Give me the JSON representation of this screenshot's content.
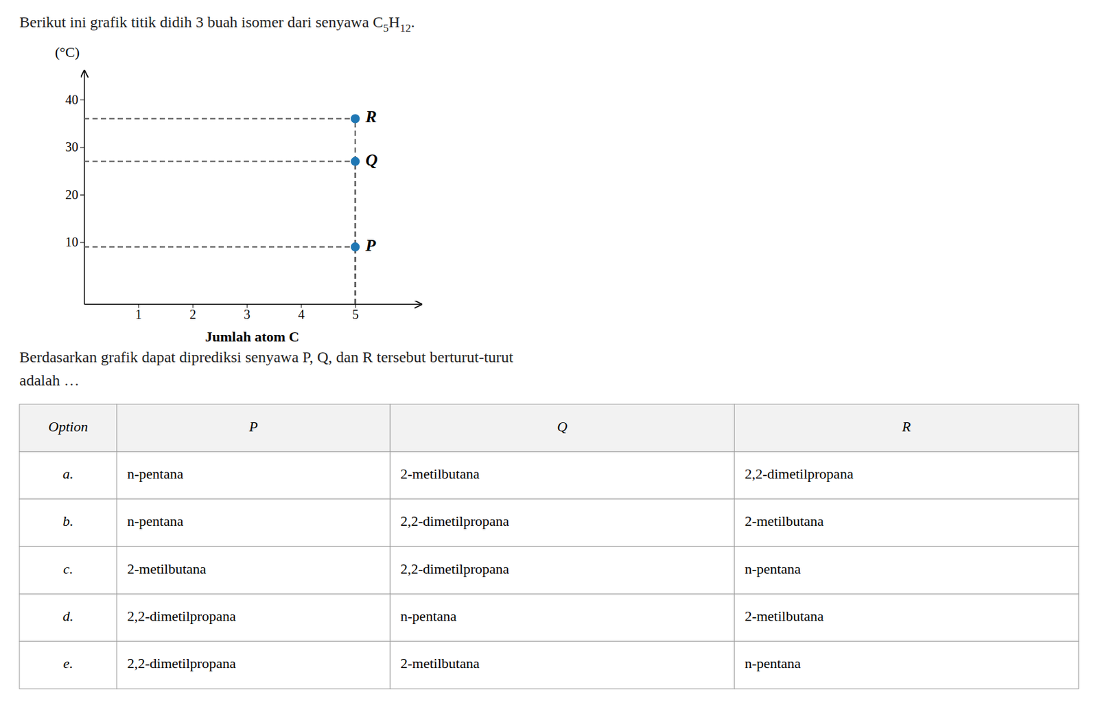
{
  "chart_data": {
    "type": "scatter",
    "title": "Berikut ini grafik titik didih 3 buah isomer dari senyawa C",
    "title_formula": [
      "5",
      "H",
      "12",
      "."
    ],
    "ylabel": "(°C)",
    "xlabel": "Jumlah atom C",
    "x": [
      5,
      5,
      5
    ],
    "values": [
      9,
      27,
      36
    ],
    "point_labels": [
      "P",
      "Q",
      "R"
    ],
    "marker": "circle",
    "line_style": "dashed",
    "xlim": [
      0,
      6.2
    ],
    "ylim": [
      -3,
      46
    ],
    "xticks": [
      1,
      2,
      3,
      4,
      5
    ],
    "yticks": [
      10,
      20,
      30,
      40
    ],
    "text_below": [
      "Berdasarkan grafik dapat diprediksi senyawa P, Q, dan R tersebut berturut-turut",
      "adalah …"
    ],
    "table": {
      "headers": [
        "Option",
        "P",
        "Q",
        "R"
      ],
      "rows": [
        [
          "a.",
          "n-pentana",
          "2-metilbutana",
          "2,2-dimetilpropana"
        ],
        [
          "b.",
          "n-pentana",
          "2,2-dimetilpropana",
          "2-metilbutana"
        ],
        [
          "c.",
          "2-metilbutana",
          "2,2-dimetilpropana",
          "n-pentana"
        ],
        [
          "d.",
          "2,2-dimetilpropana",
          "n-pentana",
          "2-metilbutana"
        ],
        [
          "e.",
          "2,2-dimetilpropana",
          "2-metilbutana",
          "n-pentana"
        ]
      ]
    }
  }
}
